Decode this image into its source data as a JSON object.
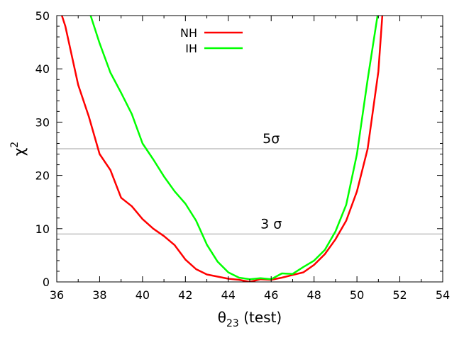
{
  "chart_data": {
    "type": "line",
    "title": "",
    "xlabel": "θ23 (test)",
    "xlabel_main": "θ",
    "xlabel_sub": "23",
    "xlabel_rest": " (test)",
    "ylabel": "χ2",
    "ylabel_main": "χ",
    "ylabel_sup": "2",
    "xlim": [
      36,
      54
    ],
    "ylim": [
      0,
      50
    ],
    "xticks": [
      36,
      38,
      40,
      42,
      44,
      46,
      48,
      50,
      52,
      54
    ],
    "yticks": [
      0,
      10,
      20,
      30,
      40,
      50
    ],
    "grid": false,
    "legend": {
      "position": "top-center"
    },
    "series": [
      {
        "name": "NH",
        "color": "#ff0000",
        "x": [
          36.2,
          36.4,
          37.0,
          37.5,
          38.0,
          38.5,
          39.0,
          39.5,
          40.0,
          40.5,
          41.0,
          41.5,
          42.0,
          42.5,
          43.0,
          43.5,
          44.0,
          44.5,
          45.0,
          45.5,
          46.0,
          46.5,
          47.0,
          47.5,
          48.0,
          48.5,
          49.0,
          49.5,
          50.0,
          50.5,
          51.0,
          51.2
        ],
        "values": [
          50.5,
          48.0,
          37.0,
          31.0,
          24.0,
          21.0,
          15.8,
          14.2,
          11.8,
          10.0,
          8.6,
          6.9,
          4.2,
          2.4,
          1.4,
          1.0,
          0.6,
          0.4,
          0.0,
          0.5,
          0.4,
          0.8,
          1.3,
          1.8,
          3.2,
          5.2,
          8.0,
          11.5,
          17.0,
          25.0,
          39.5,
          51.0
        ]
      },
      {
        "name": "IH",
        "color": "#00ff00",
        "x": [
          37.5,
          38.0,
          38.5,
          39.0,
          39.5,
          40.0,
          40.5,
          41.0,
          41.5,
          42.0,
          42.5,
          43.0,
          43.5,
          44.0,
          44.5,
          45.0,
          45.5,
          46.0,
          46.5,
          47.0,
          47.5,
          48.0,
          48.5,
          49.0,
          49.5,
          50.0,
          50.5,
          51.0
        ],
        "values": [
          51.0,
          44.8,
          39.3,
          35.5,
          31.5,
          26.0,
          23.0,
          19.8,
          17.0,
          14.7,
          11.5,
          7.0,
          3.8,
          1.8,
          0.8,
          0.5,
          0.7,
          0.5,
          1.6,
          1.5,
          2.8,
          4.0,
          6.0,
          9.5,
          14.5,
          24.0,
          38.0,
          51.0
        ]
      }
    ],
    "reference_lines": [
      {
        "y": 25,
        "label": "5σ",
        "color": "#c0c0c0"
      },
      {
        "y": 9,
        "label": "3 σ",
        "color": "#c0c0c0"
      }
    ]
  }
}
